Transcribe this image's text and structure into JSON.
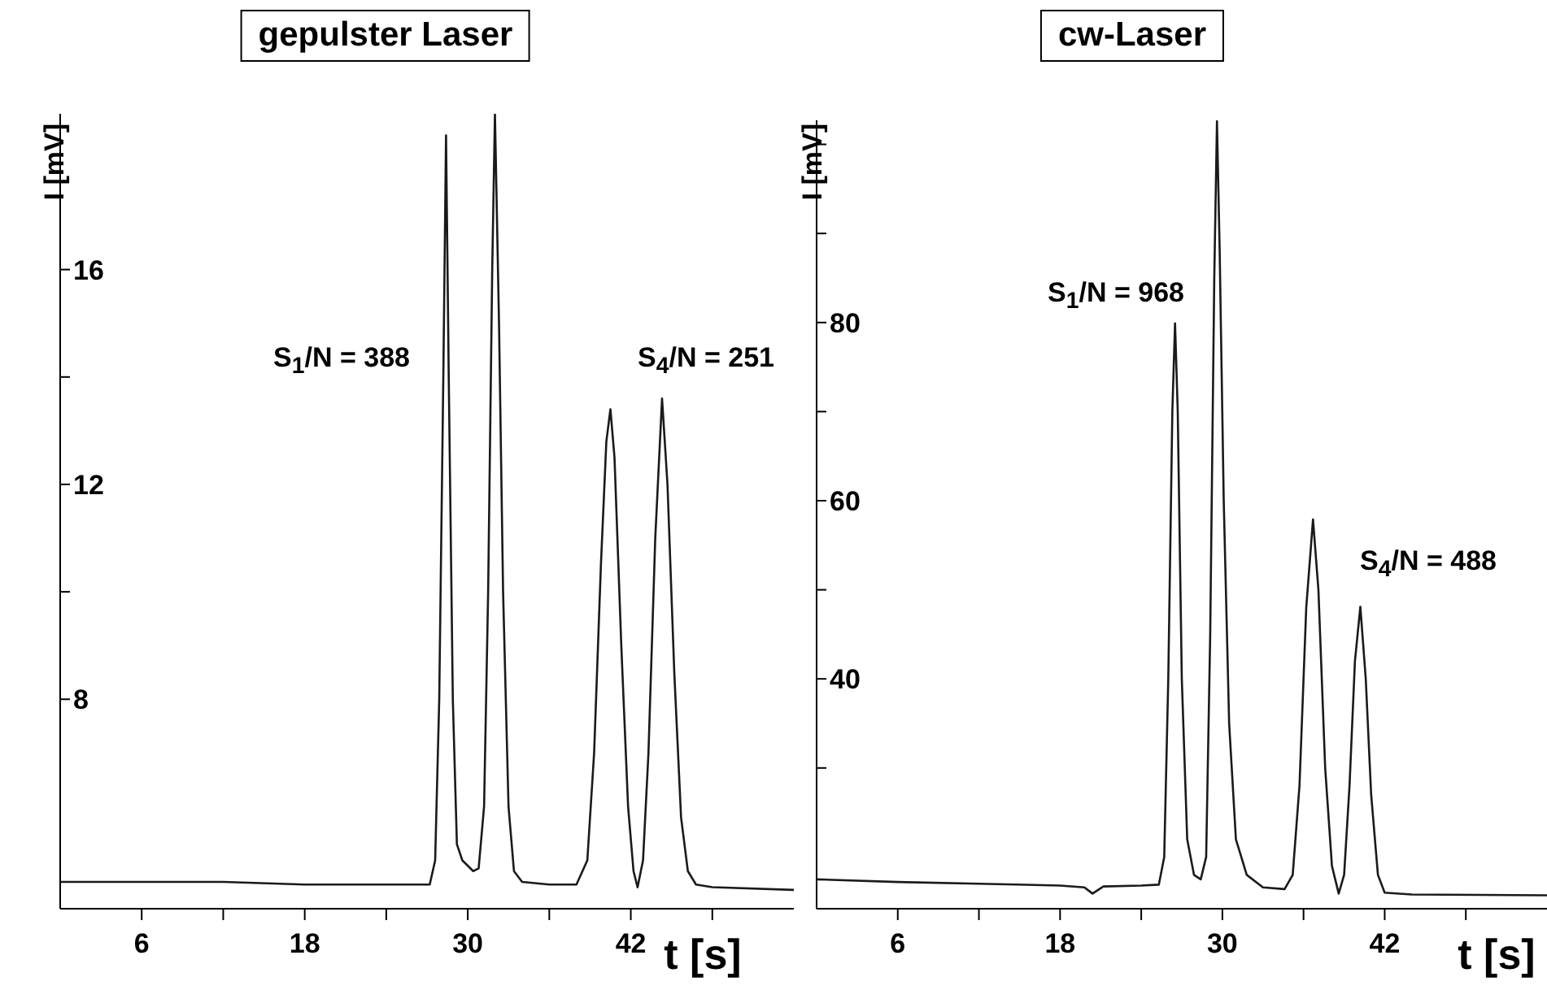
{
  "chart_data": [
    {
      "type": "line",
      "title": "gepulster Laser",
      "xlabel": "t [s]",
      "ylabel": "I [mV]",
      "marker": "none",
      "xlim": [
        0,
        54
      ],
      "xticks": [
        6,
        {
          "value": 12,
          "label": null
        },
        18,
        {
          "value": 24,
          "label": null
        },
        30,
        {
          "value": 36,
          "label": null
        },
        42,
        {
          "value": 48,
          "label": null
        }
      ],
      "ylim": [
        4.1,
        18.9
      ],
      "yticks": [
        8,
        {
          "value": 10,
          "label": null
        },
        12,
        {
          "value": 14,
          "label": null
        },
        16
      ],
      "annotations": [
        "S$_{1}$/N = 388",
        "S$_{4}$/N = 251"
      ],
      "series": [
        {
          "color": "#1a1a1a",
          "x": [
            0,
            6,
            12,
            18,
            24,
            27.2,
            27.6,
            27.9,
            28.2,
            28.4,
            28.6,
            28.9,
            29.2,
            29.6,
            30.4,
            30.8,
            31.2,
            31.5,
            31.8,
            32.0,
            32.3,
            32.6,
            33.0,
            33.4,
            34,
            36,
            38,
            38.8,
            39.3,
            39.8,
            40.2,
            40.5,
            40.8,
            41.3,
            41.8,
            42.2,
            42.5,
            42.9,
            43.3,
            43.8,
            44.3,
            44.7,
            45.2,
            45.7,
            46.2,
            46.8,
            48,
            54
          ],
          "values": [
            4.6,
            4.6,
            4.6,
            4.55,
            4.55,
            4.55,
            5.0,
            8,
            14,
            18.5,
            14,
            8,
            5.3,
            5.0,
            4.8,
            4.85,
            6,
            10,
            16,
            18.9,
            15,
            10,
            6,
            4.8,
            4.6,
            4.55,
            4.55,
            5.0,
            7,
            10.5,
            12.8,
            13.4,
            12.5,
            9,
            6,
            4.8,
            4.5,
            5.0,
            7,
            11,
            13.6,
            12,
            8.5,
            5.8,
            4.8,
            4.55,
            4.5,
            4.45
          ]
        }
      ]
    },
    {
      "type": "line",
      "title": "cw-Laser",
      "xlabel": "t [s]",
      "ylabel": "I [mV]",
      "marker": "none",
      "xlim": [
        0,
        54
      ],
      "xticks": [
        6,
        {
          "value": 12,
          "label": null
        },
        18,
        {
          "value": 24,
          "label": null
        },
        30,
        {
          "value": 36,
          "label": null
        },
        42,
        {
          "value": 48,
          "label": null
        }
      ],
      "ylim": [
        14.2,
        102.7
      ],
      "yticks": [
        {
          "value": 30,
          "label": null
        },
        40,
        {
          "value": 50,
          "label": null
        },
        60,
        {
          "value": 70,
          "label": null
        },
        80,
        {
          "value": 90,
          "label": null
        },
        {
          "value": 100,
          "label": null
        }
      ],
      "annotations": [
        "S$_{1}$/N = 968",
        "S$_{4}$/N = 488"
      ],
      "series": [
        {
          "color": "#1a1a1a",
          "x": [
            0,
            6,
            12,
            18,
            19.8,
            20.4,
            21.2,
            24,
            25.3,
            25.7,
            26.0,
            26.3,
            26.5,
            26.7,
            27.0,
            27.4,
            27.9,
            28.4,
            28.8,
            29.1,
            29.4,
            29.6,
            29.8,
            30.1,
            30.5,
            31,
            31.8,
            33,
            34.6,
            35.2,
            35.7,
            36.2,
            36.7,
            37.1,
            37.6,
            38.1,
            38.6,
            39.0,
            39.4,
            39.8,
            40.2,
            40.6,
            41.0,
            41.5,
            42,
            44,
            54
          ],
          "values": [
            17.5,
            17.2,
            17.0,
            16.8,
            16.6,
            15.9,
            16.7,
            16.8,
            16.9,
            20,
            40,
            70,
            79.9,
            70,
            40,
            22,
            18,
            17.5,
            20,
            45,
            85,
            102.6,
            88,
            60,
            35,
            22,
            18,
            16.6,
            16.4,
            18,
            28,
            48,
            57.9,
            50,
            30,
            19,
            15.9,
            18,
            28,
            42,
            48.1,
            40,
            27,
            18,
            16,
            15.8,
            15.7
          ]
        }
      ]
    }
  ]
}
